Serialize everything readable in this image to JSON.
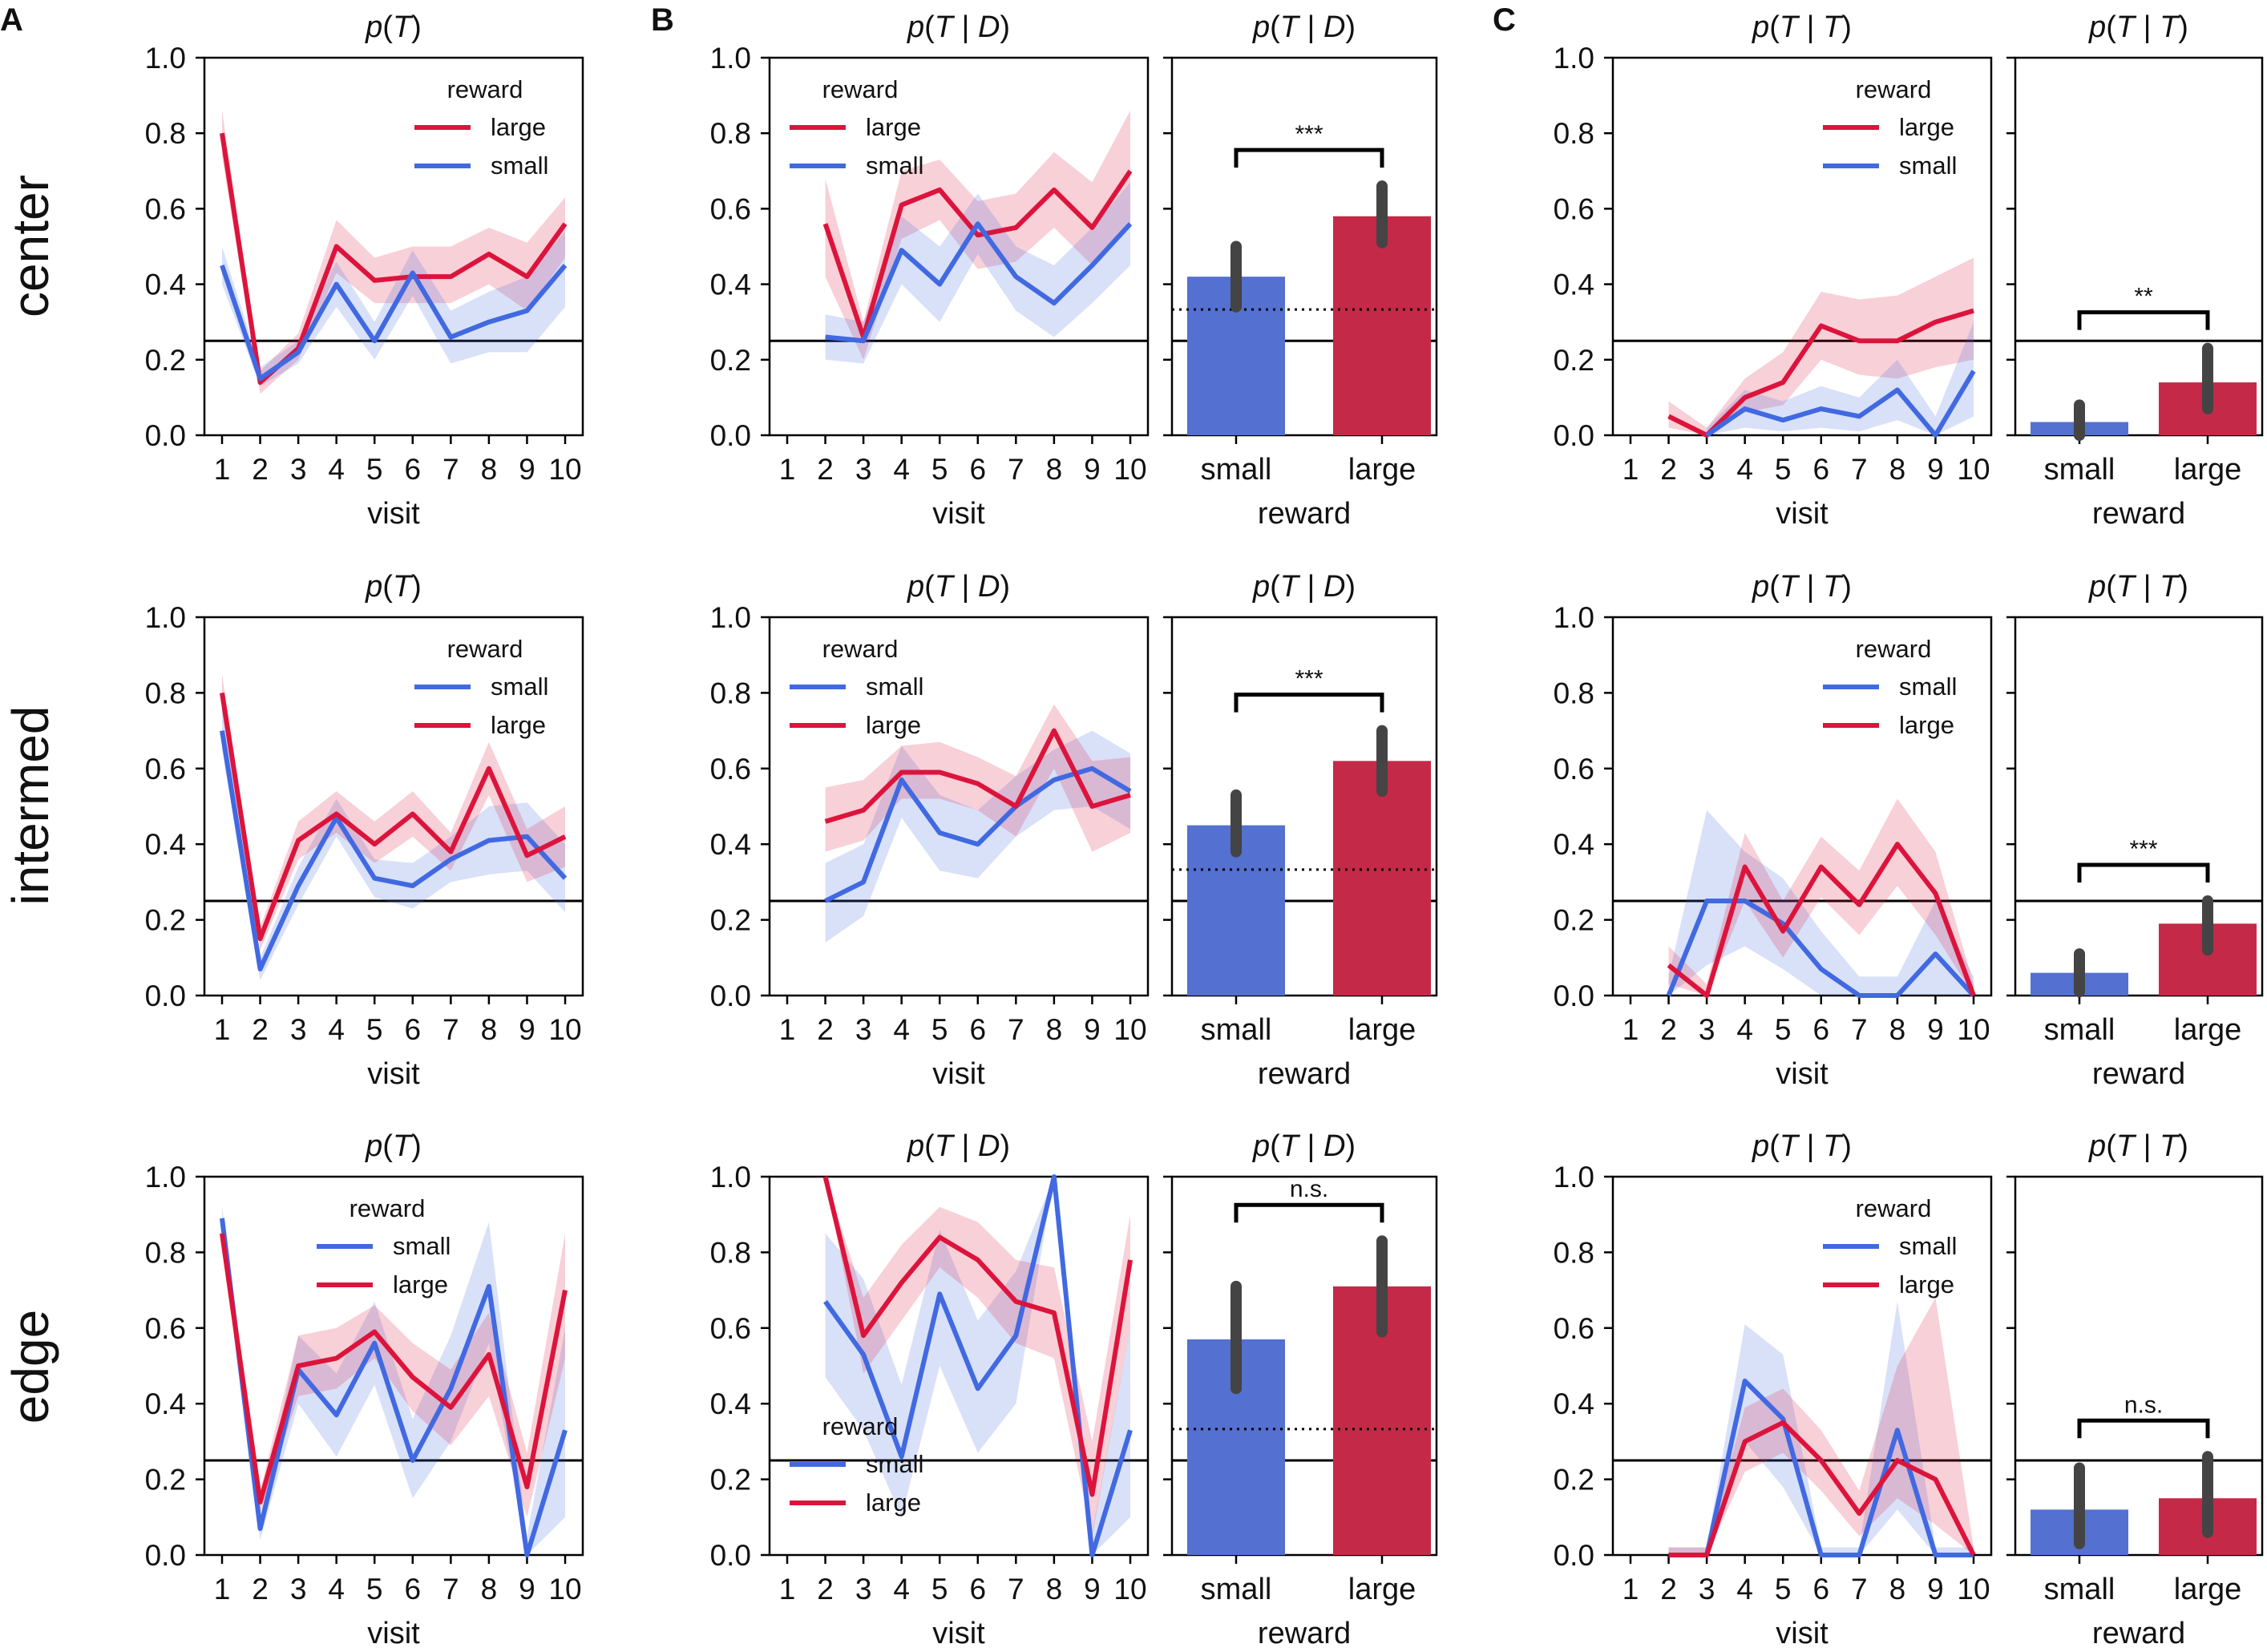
{
  "colors": {
    "small": "#4169e1",
    "large": "#dc143c",
    "small_bar": "#5470d0",
    "large_bar": "#c42a48",
    "err": "#444444"
  },
  "panel_letters": [
    "A",
    "B",
    "C"
  ],
  "row_labels": [
    "center",
    "intermed",
    "edge"
  ],
  "common": {
    "xlabel_line": "visit",
    "xlabel_bar": "reward",
    "legend_title": "reward",
    "series_labels": {
      "small": "small",
      "large": "large"
    },
    "x_ticks": [
      "1",
      "2",
      "3",
      "4",
      "5",
      "6",
      "7",
      "8",
      "9",
      "10"
    ],
    "y_ticks": [
      "0.0",
      "0.2",
      "0.4",
      "0.6",
      "0.8",
      "1.0"
    ],
    "bar_categories": [
      "small",
      "large"
    ],
    "ylim": [
      0,
      1
    ],
    "chance_line_y": 0.25,
    "dotted_line_y": 0.333
  },
  "chart_data": [
    {
      "id": "center-A",
      "type": "line",
      "row": 0,
      "col": 0,
      "title": "p(T)",
      "legend_pos": "top-right",
      "legend_order": [
        "large",
        "small"
      ],
      "x": [
        1,
        2,
        3,
        4,
        5,
        6,
        7,
        8,
        9,
        10
      ],
      "series": [
        {
          "name": "large",
          "values": [
            0.8,
            0.14,
            0.23,
            0.5,
            0.41,
            0.42,
            0.42,
            0.48,
            0.42,
            0.56
          ],
          "lower": [
            0.74,
            0.11,
            0.2,
            0.43,
            0.35,
            0.35,
            0.35,
            0.4,
            0.33,
            0.47
          ],
          "upper": [
            0.86,
            0.17,
            0.27,
            0.57,
            0.47,
            0.5,
            0.5,
            0.55,
            0.51,
            0.63
          ]
        },
        {
          "name": "small",
          "values": [
            0.45,
            0.15,
            0.22,
            0.4,
            0.25,
            0.43,
            0.26,
            0.3,
            0.33,
            0.45
          ],
          "lower": [
            0.4,
            0.13,
            0.19,
            0.34,
            0.2,
            0.37,
            0.19,
            0.22,
            0.22,
            0.34
          ],
          "upper": [
            0.5,
            0.18,
            0.25,
            0.46,
            0.3,
            0.49,
            0.33,
            0.38,
            0.42,
            0.54
          ]
        }
      ]
    },
    {
      "id": "center-B",
      "type": "line",
      "row": 0,
      "col": 1,
      "title": "p(T | D)",
      "legend_pos": "top-left",
      "legend_order": [
        "large",
        "small"
      ],
      "x": [
        1,
        2,
        3,
        4,
        5,
        6,
        7,
        8,
        9,
        10
      ],
      "series": [
        {
          "name": "large",
          "values": [
            null,
            0.56,
            0.26,
            0.61,
            0.65,
            0.53,
            0.55,
            0.65,
            0.55,
            0.7
          ],
          "lower": [
            null,
            0.42,
            0.2,
            0.52,
            0.57,
            0.44,
            0.46,
            0.55,
            0.45,
            0.56
          ],
          "upper": [
            null,
            0.68,
            0.3,
            0.7,
            0.73,
            0.62,
            0.64,
            0.75,
            0.67,
            0.86
          ]
        },
        {
          "name": "small",
          "values": [
            null,
            0.26,
            0.25,
            0.49,
            0.4,
            0.56,
            0.42,
            0.35,
            0.45,
            0.56
          ],
          "lower": [
            null,
            0.2,
            0.19,
            0.4,
            0.3,
            0.48,
            0.33,
            0.26,
            0.35,
            0.45
          ],
          "upper": [
            null,
            0.32,
            0.3,
            0.58,
            0.5,
            0.64,
            0.5,
            0.45,
            0.55,
            0.67
          ]
        }
      ]
    },
    {
      "id": "center-B-bar",
      "type": "bar",
      "row": 0,
      "col": 2,
      "title": "p(T | D)",
      "categories": [
        "small",
        "large"
      ],
      "values": [
        0.42,
        0.58
      ],
      "err_lower": [
        0.34,
        0.51
      ],
      "err_upper": [
        0.5,
        0.66
      ],
      "significance": "***",
      "dotted_line": true
    },
    {
      "id": "center-C",
      "type": "line",
      "row": 0,
      "col": 3,
      "title": "p(T | T)",
      "legend_pos": "top-right",
      "legend_order": [
        "large",
        "small"
      ],
      "x": [
        1,
        2,
        3,
        4,
        5,
        6,
        7,
        8,
        9,
        10
      ],
      "series": [
        {
          "name": "large",
          "values": [
            null,
            0.05,
            0.0,
            0.1,
            0.14,
            0.29,
            0.25,
            0.25,
            0.3,
            0.33
          ],
          "lower": [
            null,
            0.02,
            0.0,
            0.06,
            0.08,
            0.2,
            0.16,
            0.15,
            0.18,
            0.2
          ],
          "upper": [
            null,
            0.09,
            0.02,
            0.15,
            0.22,
            0.38,
            0.36,
            0.37,
            0.42,
            0.47
          ]
        },
        {
          "name": "small",
          "values": [
            null,
            null,
            0.0,
            0.07,
            0.04,
            0.07,
            0.05,
            0.12,
            0.0,
            0.17
          ],
          "lower": [
            null,
            null,
            0.0,
            0.02,
            0.01,
            0.02,
            0.01,
            0.04,
            0.0,
            0.05
          ],
          "upper": [
            null,
            null,
            0.02,
            0.12,
            0.09,
            0.13,
            0.1,
            0.2,
            0.05,
            0.3
          ]
        }
      ]
    },
    {
      "id": "center-C-bar",
      "type": "bar",
      "row": 0,
      "col": 4,
      "title": "p(T | T)",
      "categories": [
        "small",
        "large"
      ],
      "values": [
        0.035,
        0.14
      ],
      "err_lower": [
        0.0,
        0.07
      ],
      "err_upper": [
        0.08,
        0.23
      ],
      "significance": "**",
      "dotted_line": false
    },
    {
      "id": "intermed-A",
      "type": "line",
      "row": 1,
      "col": 0,
      "title": "p(T)",
      "legend_pos": "top-right",
      "legend_order": [
        "small",
        "large"
      ],
      "x": [
        1,
        2,
        3,
        4,
        5,
        6,
        7,
        8,
        9,
        10
      ],
      "series": [
        {
          "name": "small",
          "values": [
            0.7,
            0.07,
            0.29,
            0.47,
            0.31,
            0.29,
            0.36,
            0.41,
            0.42,
            0.31
          ],
          "lower": [
            0.65,
            0.04,
            0.24,
            0.42,
            0.26,
            0.23,
            0.3,
            0.32,
            0.33,
            0.22
          ],
          "upper": [
            0.76,
            0.1,
            0.34,
            0.52,
            0.36,
            0.35,
            0.42,
            0.5,
            0.51,
            0.4
          ]
        },
        {
          "name": "large",
          "values": [
            0.8,
            0.15,
            0.41,
            0.48,
            0.4,
            0.48,
            0.38,
            0.6,
            0.37,
            0.42
          ],
          "lower": [
            0.75,
            0.12,
            0.36,
            0.43,
            0.35,
            0.42,
            0.33,
            0.53,
            0.3,
            0.34
          ],
          "upper": [
            0.85,
            0.18,
            0.46,
            0.54,
            0.46,
            0.54,
            0.43,
            0.67,
            0.44,
            0.5
          ]
        }
      ]
    },
    {
      "id": "intermed-B",
      "type": "line",
      "row": 1,
      "col": 1,
      "title": "p(T | D)",
      "legend_pos": "top-left",
      "legend_order": [
        "small",
        "large"
      ],
      "x": [
        1,
        2,
        3,
        4,
        5,
        6,
        7,
        8,
        9,
        10
      ],
      "series": [
        {
          "name": "small",
          "values": [
            null,
            0.25,
            0.3,
            0.57,
            0.43,
            0.4,
            0.5,
            0.57,
            0.6,
            0.54
          ],
          "lower": [
            null,
            0.14,
            0.21,
            0.47,
            0.33,
            0.31,
            0.42,
            0.49,
            0.5,
            0.44
          ],
          "upper": [
            null,
            0.35,
            0.4,
            0.66,
            0.53,
            0.49,
            0.58,
            0.65,
            0.7,
            0.64
          ]
        },
        {
          "name": "large",
          "values": [
            null,
            0.46,
            0.49,
            0.59,
            0.59,
            0.56,
            0.5,
            0.7,
            0.5,
            0.53
          ],
          "lower": [
            null,
            0.38,
            0.41,
            0.52,
            0.52,
            0.49,
            0.42,
            0.6,
            0.38,
            0.43
          ],
          "upper": [
            null,
            0.55,
            0.57,
            0.66,
            0.67,
            0.63,
            0.58,
            0.77,
            0.62,
            0.63
          ]
        }
      ]
    },
    {
      "id": "intermed-B-bar",
      "type": "bar",
      "row": 1,
      "col": 2,
      "title": "p(T | D)",
      "categories": [
        "small",
        "large"
      ],
      "values": [
        0.45,
        0.62
      ],
      "err_lower": [
        0.38,
        0.54
      ],
      "err_upper": [
        0.53,
        0.7
      ],
      "significance": "***",
      "dotted_line": true
    },
    {
      "id": "intermed-C",
      "type": "line",
      "row": 1,
      "col": 3,
      "title": "p(T | T)",
      "legend_pos": "top-right",
      "legend_order": [
        "small",
        "large"
      ],
      "x": [
        1,
        2,
        3,
        4,
        5,
        6,
        7,
        8,
        9,
        10
      ],
      "series": [
        {
          "name": "small",
          "values": [
            null,
            0.0,
            0.25,
            0.25,
            0.19,
            0.07,
            0.0,
            0.0,
            0.11,
            0.0
          ],
          "lower": [
            null,
            0.0,
            0.08,
            0.13,
            0.07,
            0.0,
            0.0,
            0.0,
            0.0,
            0.0
          ],
          "upper": [
            null,
            0.05,
            0.49,
            0.38,
            0.31,
            0.17,
            0.05,
            0.05,
            0.25,
            0.05
          ]
        },
        {
          "name": "large",
          "values": [
            null,
            0.08,
            0.0,
            0.34,
            0.17,
            0.34,
            0.24,
            0.4,
            0.27,
            0.0
          ],
          "lower": [
            null,
            0.03,
            0.0,
            0.25,
            0.1,
            0.26,
            0.16,
            0.29,
            0.16,
            0.0
          ],
          "upper": [
            null,
            0.13,
            0.03,
            0.43,
            0.25,
            0.42,
            0.33,
            0.52,
            0.38,
            0.03
          ]
        }
      ]
    },
    {
      "id": "intermed-C-bar",
      "type": "bar",
      "row": 1,
      "col": 4,
      "title": "p(T | T)",
      "categories": [
        "small",
        "large"
      ],
      "values": [
        0.06,
        0.19
      ],
      "err_lower": [
        0.01,
        0.12
      ],
      "err_upper": [
        0.11,
        0.25
      ],
      "significance": "***",
      "dotted_line": false
    },
    {
      "id": "edge-A",
      "type": "line",
      "row": 2,
      "col": 0,
      "title": "p(T)",
      "legend_pos": "top-center",
      "legend_order": [
        "small",
        "large"
      ],
      "x": [
        1,
        2,
        3,
        4,
        5,
        6,
        7,
        8,
        9,
        10
      ],
      "series": [
        {
          "name": "small",
          "values": [
            0.89,
            0.07,
            0.49,
            0.37,
            0.56,
            0.25,
            0.44,
            0.71,
            0.0,
            0.33
          ],
          "lower": [
            0.86,
            0.04,
            0.4,
            0.26,
            0.45,
            0.15,
            0.3,
            0.56,
            0.0,
            0.1
          ],
          "upper": [
            0.92,
            0.1,
            0.58,
            0.48,
            0.67,
            0.36,
            0.58,
            0.88,
            0.05,
            0.6
          ]
        },
        {
          "name": "large",
          "values": [
            0.85,
            0.14,
            0.5,
            0.52,
            0.59,
            0.47,
            0.39,
            0.53,
            0.18,
            0.7
          ],
          "lower": [
            0.82,
            0.11,
            0.42,
            0.44,
            0.52,
            0.38,
            0.29,
            0.42,
            0.1,
            0.52
          ],
          "upper": [
            0.88,
            0.17,
            0.58,
            0.6,
            0.66,
            0.56,
            0.49,
            0.64,
            0.27,
            0.85
          ]
        }
      ]
    },
    {
      "id": "edge-B",
      "type": "line",
      "row": 2,
      "col": 1,
      "title": "p(T | D)",
      "legend_pos": "bottom-left",
      "legend_order": [
        "small",
        "large"
      ],
      "x": [
        1,
        2,
        3,
        4,
        5,
        6,
        7,
        8,
        9,
        10
      ],
      "series": [
        {
          "name": "small",
          "values": [
            null,
            0.67,
            0.53,
            0.26,
            0.69,
            0.44,
            0.58,
            1.0,
            0.0,
            0.33
          ],
          "lower": [
            null,
            0.47,
            0.33,
            0.1,
            0.5,
            0.27,
            0.4,
            1.0,
            0.0,
            0.1
          ],
          "upper": [
            null,
            0.85,
            0.73,
            0.45,
            0.86,
            0.62,
            0.75,
            1.0,
            0.06,
            0.6
          ]
        },
        {
          "name": "large",
          "values": [
            null,
            1.0,
            0.58,
            0.72,
            0.84,
            0.78,
            0.67,
            0.64,
            0.16,
            0.78
          ],
          "lower": [
            null,
            1.0,
            0.48,
            0.62,
            0.76,
            0.68,
            0.56,
            0.52,
            0.05,
            0.6
          ],
          "upper": [
            null,
            1.0,
            0.68,
            0.82,
            0.92,
            0.88,
            0.78,
            0.76,
            0.3,
            0.9
          ]
        }
      ]
    },
    {
      "id": "edge-B-bar",
      "type": "bar",
      "row": 2,
      "col": 2,
      "title": "p(T | D)",
      "categories": [
        "small",
        "large"
      ],
      "values": [
        0.57,
        0.71
      ],
      "err_lower": [
        0.44,
        0.59
      ],
      "err_upper": [
        0.71,
        0.83
      ],
      "significance": "n.s.",
      "dotted_line": true
    },
    {
      "id": "edge-C",
      "type": "line",
      "row": 2,
      "col": 3,
      "title": "p(T | T)",
      "legend_pos": "top-right",
      "legend_order": [
        "small",
        "large"
      ],
      "x": [
        1,
        2,
        3,
        4,
        5,
        6,
        7,
        8,
        9,
        10
      ],
      "series": [
        {
          "name": "small",
          "values": [
            null,
            0.0,
            0.0,
            0.46,
            0.36,
            0.0,
            0.0,
            0.33,
            0.0,
            0.0
          ],
          "lower": [
            null,
            0.0,
            0.0,
            0.3,
            0.18,
            0.0,
            0.0,
            0.12,
            0.0,
            0.0
          ],
          "upper": [
            null,
            0.02,
            0.02,
            0.61,
            0.53,
            0.02,
            0.02,
            0.67,
            0.02,
            0.02
          ]
        },
        {
          "name": "large",
          "values": [
            null,
            0.0,
            0.0,
            0.3,
            0.35,
            0.25,
            0.11,
            0.25,
            0.2,
            0.0
          ],
          "lower": [
            null,
            0.0,
            0.0,
            0.22,
            0.27,
            0.17,
            0.05,
            0.15,
            0.08,
            0.0
          ],
          "upper": [
            null,
            0.02,
            0.02,
            0.39,
            0.44,
            0.33,
            0.17,
            0.5,
            0.68,
            0.02
          ]
        }
      ]
    },
    {
      "id": "edge-C-bar",
      "type": "bar",
      "row": 2,
      "col": 4,
      "title": "p(T | T)",
      "categories": [
        "small",
        "large"
      ],
      "values": [
        0.12,
        0.15
      ],
      "err_lower": [
        0.03,
        0.06
      ],
      "err_upper": [
        0.23,
        0.26
      ],
      "significance": "n.s.",
      "dotted_line": false
    }
  ]
}
